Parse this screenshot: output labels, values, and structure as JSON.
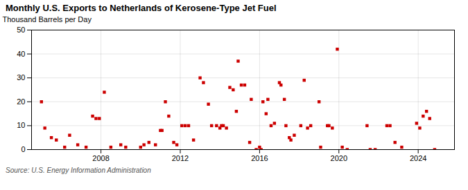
{
  "chart_data": {
    "type": "scatter",
    "title": "Monthly U.S. Exports to Netherlands of Kerosene-Type Jet Fuel",
    "ylabel": "Thousand Barrels per Day",
    "source": "Source: U.S. Energy Information Administration",
    "color": "#cc0000",
    "marker": "square",
    "grid": true,
    "xlim": [
      2004.5,
      2025.83
    ],
    "ylim": [
      0,
      50
    ],
    "xticks": [
      2008,
      2012,
      2016,
      2020,
      2024
    ],
    "yticks": [
      0,
      10,
      20,
      30,
      40,
      50
    ],
    "x": [
      2005.0,
      2005.17,
      2005.5,
      2005.75,
      2006.17,
      2006.42,
      2006.83,
      2007.25,
      2007.58,
      2007.75,
      2007.92,
      2008.17,
      2008.5,
      2009.0,
      2009.25,
      2010.0,
      2010.17,
      2010.42,
      2010.75,
      2011.0,
      2011.08,
      2011.25,
      2011.42,
      2011.67,
      2011.83,
      2012.08,
      2012.25,
      2012.42,
      2012.67,
      2013.0,
      2013.17,
      2013.42,
      2013.58,
      2013.83,
      2014.0,
      2014.08,
      2014.17,
      2014.33,
      2014.5,
      2014.67,
      2014.83,
      2014.92,
      2015.08,
      2015.25,
      2015.5,
      2015.58,
      2015.83,
      2016.0,
      2016.08,
      2016.17,
      2016.33,
      2016.42,
      2016.58,
      2016.75,
      2017.0,
      2017.08,
      2017.25,
      2017.33,
      2017.5,
      2017.58,
      2017.75,
      2018.08,
      2018.25,
      2018.42,
      2018.58,
      2019.0,
      2019.08,
      2019.42,
      2019.5,
      2019.67,
      2019.92,
      2020.17,
      2020.42,
      2021.42,
      2021.58,
      2021.83,
      2022.42,
      2022.58,
      2022.83,
      2023.17,
      2023.92,
      2024.08,
      2024.25,
      2024.42,
      2024.58,
      2024.83
    ],
    "values": [
      20,
      9,
      5,
      4,
      1,
      6,
      2,
      1,
      14,
      13,
      13,
      24,
      1,
      2,
      1,
      1,
      2,
      3,
      2,
      8,
      8,
      20,
      14,
      3,
      2,
      10,
      10,
      10,
      4,
      30,
      28,
      19,
      10,
      10,
      9,
      10,
      10,
      9,
      26,
      25,
      16,
      37,
      27,
      27,
      3,
      21,
      0,
      1,
      0,
      20,
      15,
      21,
      10,
      11,
      28,
      27,
      21,
      10,
      5,
      4,
      6,
      10,
      29,
      9,
      10,
      20,
      1,
      10,
      10,
      9,
      42,
      1,
      0,
      10,
      0,
      0,
      10,
      10,
      3,
      1,
      11,
      9,
      14,
      16,
      13,
      0
    ]
  }
}
